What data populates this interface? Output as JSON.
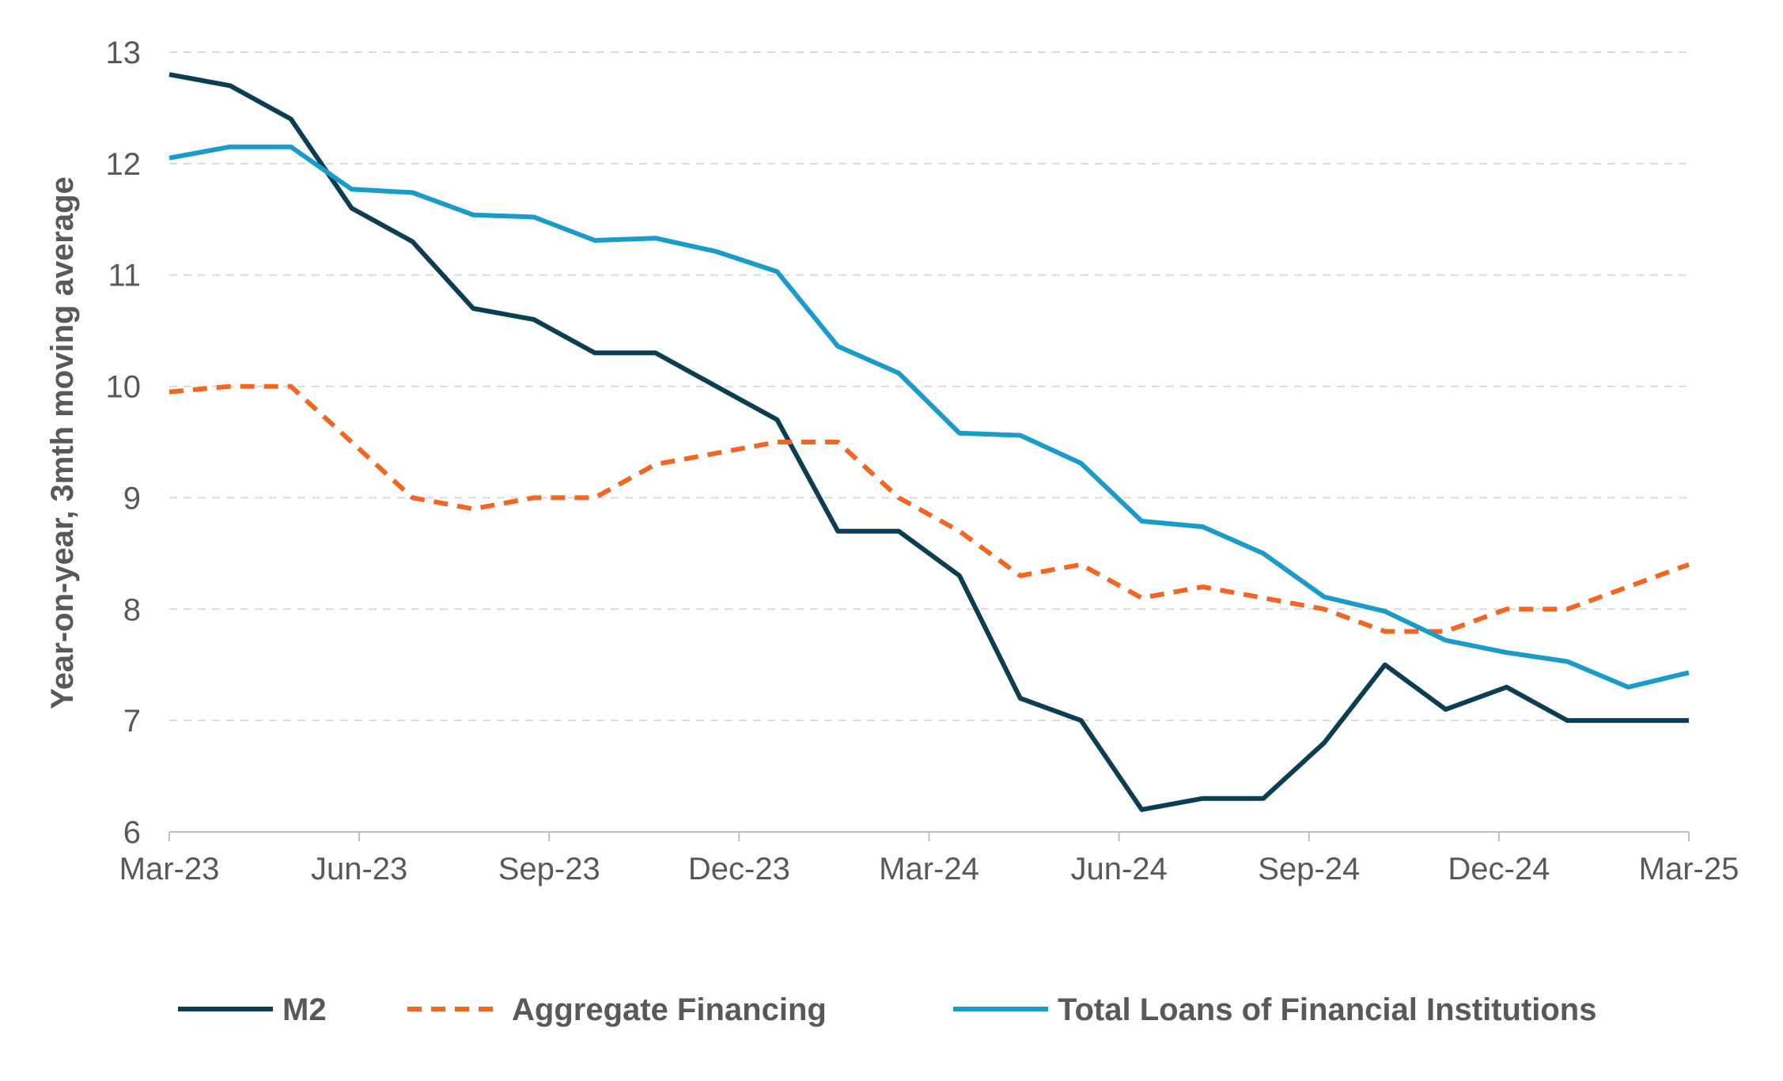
{
  "chart_data": {
    "type": "line",
    "ylabel": "Year-on-year, 3mth moving average",
    "xlabel": "",
    "ylim": [
      6,
      13
    ],
    "yticks": [
      6,
      7,
      8,
      9,
      10,
      11,
      12,
      13
    ],
    "grid": true,
    "legend_position": "bottom",
    "x": [
      "Mar-23",
      "Apr-23",
      "May-23",
      "Jun-23",
      "Jul-23",
      "Aug-23",
      "Sep-23",
      "Oct-23",
      "Nov-23",
      "Dec-23",
      "Jan-24",
      "Feb-24",
      "Mar-24",
      "Apr-24",
      "May-24",
      "Jun-24",
      "Jul-24",
      "Aug-24",
      "Sep-24",
      "Oct-24",
      "Nov-24",
      "Dec-24",
      "Jan-25",
      "Feb-25",
      "Mar-25"
    ],
    "xtick_labels": [
      "Mar-23",
      "Jun-23",
      "Sep-23",
      "Dec-23",
      "Mar-24",
      "Jun-24",
      "Sep-24",
      "Dec-24",
      "Mar-25"
    ],
    "series": [
      {
        "name": "M2",
        "color": "#0b3d53",
        "style": "solid",
        "points": [
          [
            "Mar-23",
            12.8
          ],
          [
            "Mar-23",
            12.7
          ],
          [
            "Apr-23",
            12.4
          ],
          [
            "May-23",
            11.6
          ],
          [
            "Jun-23",
            11.3
          ],
          [
            "Jul-23",
            10.7
          ],
          [
            "Aug-23",
            10.6
          ],
          [
            "Sep-23",
            10.3
          ],
          [
            "Oct-23",
            10.3
          ],
          [
            "Nov-23",
            10.0
          ],
          [
            "Dec-23",
            9.7
          ],
          [
            "Jan-24",
            8.7
          ],
          [
            "Feb-24",
            8.7
          ],
          [
            "Mar-24",
            8.3
          ],
          [
            "Apr-24",
            7.2
          ],
          [
            "May-24",
            7.0
          ],
          [
            "Jun-24",
            6.2
          ],
          [
            "Jul-24",
            6.3
          ],
          [
            "Aug-24",
            6.3
          ],
          [
            "Sep-24",
            6.8
          ],
          [
            "Oct-24",
            7.5
          ],
          [
            "Nov-24",
            7.1
          ],
          [
            "Dec-24",
            7.3
          ],
          [
            "Jan-25",
            7.0
          ],
          [
            "Feb-25",
            7.0
          ],
          [
            "Mar-25",
            7.0
          ]
        ]
      },
      {
        "name": "Aggregate Financing",
        "color": "#f26522",
        "style": "dashed",
        "points": [
          [
            "Mar-23",
            9.95
          ],
          [
            "Mar-23",
            10.0
          ],
          [
            "Apr-23",
            10.0
          ],
          [
            "May-23",
            9.5
          ],
          [
            "Jun-23",
            9.0
          ],
          [
            "Jul-23",
            8.9
          ],
          [
            "Aug-23",
            9.0
          ],
          [
            "Sep-23",
            9.0
          ],
          [
            "Oct-23",
            9.3
          ],
          [
            "Nov-23",
            9.4
          ],
          [
            "Dec-23",
            9.5
          ],
          [
            "Jan-24",
            9.5
          ],
          [
            "Feb-24",
            9.0
          ],
          [
            "Mar-24",
            8.7
          ],
          [
            "Apr-24",
            8.3
          ],
          [
            "May-24",
            8.4
          ],
          [
            "Jun-24",
            8.1
          ],
          [
            "Jul-24",
            8.2
          ],
          [
            "Aug-24",
            8.1
          ],
          [
            "Sep-24",
            8.0
          ],
          [
            "Oct-24",
            7.8
          ],
          [
            "Nov-24",
            7.8
          ],
          [
            "Dec-24",
            8.0
          ],
          [
            "Jan-25",
            8.0
          ],
          [
            "Feb-25",
            8.2
          ],
          [
            "Mar-25",
            8.4
          ]
        ]
      },
      {
        "name": "Total Loans of Financial Institutions",
        "color": "#1a9bc9",
        "style": "solid",
        "points": [
          [
            "Mar-23",
            12.05
          ],
          [
            "Mar-23",
            12.15
          ],
          [
            "Apr-23",
            12.15
          ],
          [
            "May-23",
            11.77
          ],
          [
            "Jun-23",
            11.74
          ],
          [
            "Jul-23",
            11.54
          ],
          [
            "Aug-23",
            11.52
          ],
          [
            "Sep-23",
            11.31
          ],
          [
            "Oct-23",
            11.33
          ],
          [
            "Nov-23",
            11.21
          ],
          [
            "Dec-23",
            11.03
          ],
          [
            "Jan-24",
            10.36
          ],
          [
            "Feb-24",
            10.12
          ],
          [
            "Mar-24",
            9.58
          ],
          [
            "Apr-24",
            9.56
          ],
          [
            "May-24",
            9.31
          ],
          [
            "Jun-24",
            8.79
          ],
          [
            "Jul-24",
            8.74
          ],
          [
            "Aug-24",
            8.5
          ],
          [
            "Sep-24",
            8.11
          ],
          [
            "Oct-24",
            7.98
          ],
          [
            "Nov-24",
            7.72
          ],
          [
            "Dec-24",
            7.61
          ],
          [
            "Jan-25",
            7.53
          ],
          [
            "Feb-25",
            7.3
          ],
          [
            "Mar-25",
            7.43
          ]
        ]
      }
    ]
  }
}
